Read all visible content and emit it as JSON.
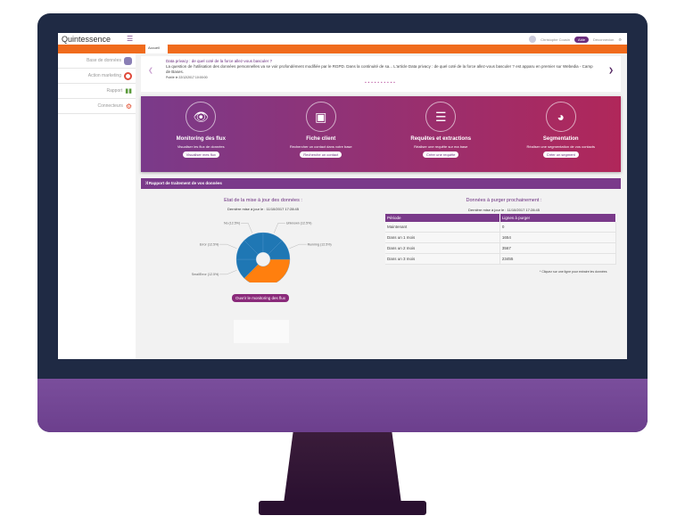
{
  "header": {
    "logo": "Quintessence",
    "user": "Christophe Cousin",
    "help": "Aide",
    "logout": "Déconnexion"
  },
  "tabs": [
    {
      "label": "Accueil"
    }
  ],
  "sidebar": {
    "items": [
      {
        "label": "Base de données",
        "icon": "database-icon"
      },
      {
        "label": "Action marketing",
        "icon": "target-icon"
      },
      {
        "label": "Rapport",
        "icon": "bar-chart-icon"
      },
      {
        "label": "Connecteurs",
        "icon": "gears-icon"
      }
    ]
  },
  "news": {
    "title": "Data privacy : de quel coté de la force allez-vous basculer ?",
    "body": "La question de l'utilisation des données personnelles va se voir profondément modifiée par le RGPD. Dans la continuité de sa... L'article Data privacy : de quel coté de la force allez-vous basculer ? est apparu en premier sur Webedia - Camp de Bases.",
    "date": "Publié le 22/12/2017 10:00:00"
  },
  "cards": [
    {
      "title": "Monitoring des flux",
      "desc": "Visualiser les flux de données",
      "button": "Visualiser mes flux",
      "icon": "eye-icon"
    },
    {
      "title": "Fiche client",
      "desc": "Rechercher un contact dans votre base",
      "button": "Recherche un contact",
      "icon": "contact-book-icon"
    },
    {
      "title": "Requêtes et extractions",
      "desc": "Réaliser une requête sur ma base",
      "button": "Créer une requête",
      "icon": "database-icon"
    },
    {
      "title": "Segmentation",
      "desc": "Réaliser une segmentation de vos contacts",
      "button": "Créer un segment",
      "icon": "pie-chart-icon"
    }
  ],
  "report": {
    "title": "Rapport de traitement de vos données",
    "open_monitoring": "Ouvrir le monitoring des flux"
  },
  "chart_data": {
    "type": "pie",
    "title": "Etat de la mise à jour des données :",
    "subtitle": "Dernière mise à jour le : 11/10/2017 17:28:45",
    "slices": [
      {
        "name": "Ok",
        "value": 37.5,
        "label": "Ok (37.5%)",
        "color": "#ff7f0e"
      },
      {
        "name": "SmallError",
        "value": 12.5,
        "label": "SmallError (12.5%)",
        "color": "#1f77b4"
      },
      {
        "name": "Error",
        "value": 12.5,
        "label": "Error (12.5%)",
        "color": "#1f77b4"
      },
      {
        "name": "No",
        "value": 12.5,
        "label": "No (12.5%)",
        "color": "#1f77b4"
      },
      {
        "name": "Unknown",
        "value": 12.5,
        "label": "Unknown (12.5%)",
        "color": "#1f77b4"
      },
      {
        "name": "Running",
        "value": 12.5,
        "label": "Running (12.5%)",
        "color": "#1f77b4"
      }
    ]
  },
  "purge": {
    "title": "Données à purger prochainement :",
    "subtitle": "Dernière mise à jour le : 11/10/2017 17:28:45",
    "headers": [
      "Période",
      "Lignes à purger"
    ],
    "rows": [
      [
        "Maintenant",
        "0"
      ],
      [
        "Dans un 1 mois",
        "1654"
      ],
      [
        "Dans un 2 mois",
        "3567"
      ],
      [
        "Dans un 3 mois",
        "23455"
      ]
    ],
    "note": "* Cliquez sur une ligne pour extraire les données"
  }
}
